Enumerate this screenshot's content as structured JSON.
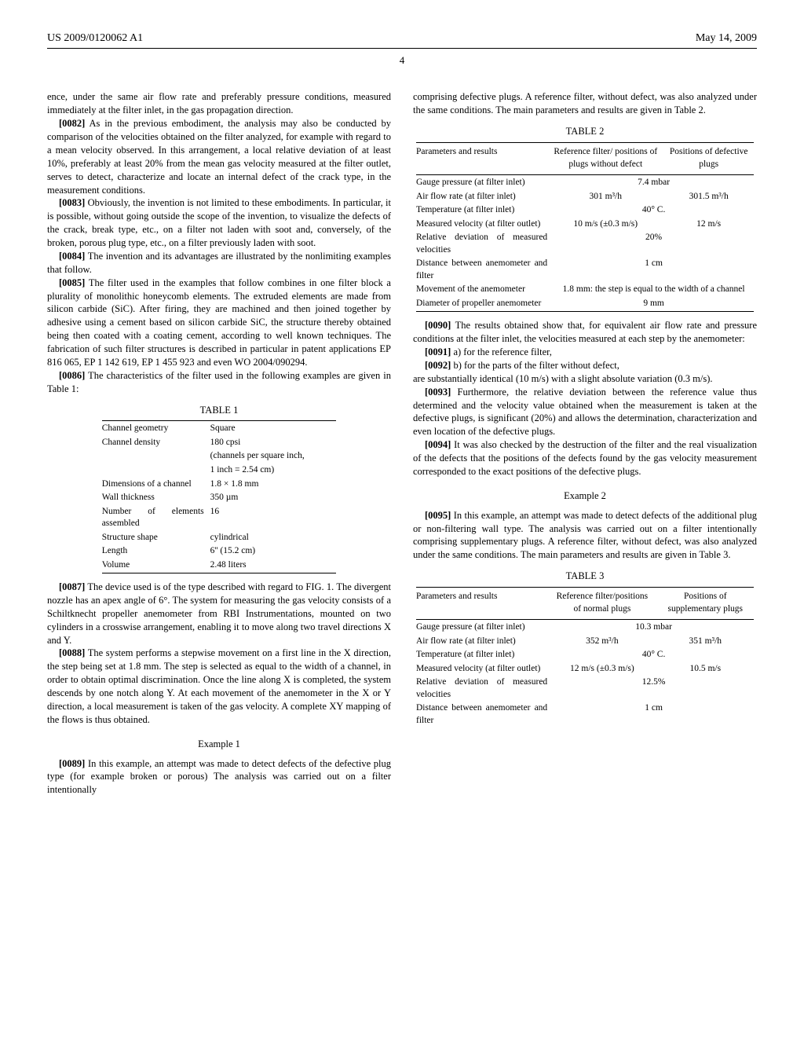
{
  "header": {
    "left": "US 2009/0120062 A1",
    "right": "May 14, 2009"
  },
  "pageNumber": "4",
  "leftCol": {
    "p_cont": "ence, under the same air flow rate and preferably pressure conditions, measured immediately at the filter inlet, in the gas propagation direction.",
    "p0082": "As in the previous embodiment, the analysis may also be conducted by comparison of the velocities obtained on the filter analyzed, for example with regard to a mean velocity observed. In this arrangement, a local relative deviation of at least 10%, preferably at least 20% from the mean gas velocity measured at the filter outlet, serves to detect, characterize and locate an internal defect of the crack type, in the measurement conditions.",
    "p0083": "Obviously, the invention is not limited to these embodiments. In particular, it is possible, without going outside the scope of the invention, to visualize the defects of the crack, break type, etc., on a filter not laden with soot and, conversely, of the broken, porous plug type, etc., on a filter previously laden with soot.",
    "p0084": "The invention and its advantages are illustrated by the nonlimiting examples that follow.",
    "p0085": "The filter used in the examples that follow combines in one filter block a plurality of monolithic honeycomb elements. The extruded elements are made from silicon carbide (SiC). After firing, they are machined and then joined together by adhesive using a cement based on silicon carbide SiC, the structure thereby obtained being then coated with a coating cement, according to well known techniques. The fabrication of such filter structures is described in particular in patent applications EP 816 065, EP 1 142 619, EP 1 455 923 and even WO 2004/090294.",
    "p0086": "The characteristics of the filter used in the following examples are given in Table 1:",
    "table1": {
      "title": "TABLE 1",
      "rows": [
        [
          "Channel geometry",
          "Square"
        ],
        [
          "Channel density",
          "180 cpsi"
        ],
        [
          "",
          "(channels per square inch,"
        ],
        [
          "",
          "1 inch = 2.54 cm)"
        ],
        [
          "Dimensions of a channel",
          "1.8 × 1.8 mm"
        ],
        [
          "Wall thickness",
          "350 µm"
        ],
        [
          "Number of elements assembled",
          "16"
        ],
        [
          "Structure shape",
          "cylindrical"
        ],
        [
          "Length",
          "6'' (15.2 cm)"
        ],
        [
          "Volume",
          "2.48 liters"
        ]
      ]
    },
    "p0087": "The device used is of the type described with regard to FIG. 1. The divergent nozzle has an apex angle of 6°. The system for measuring the gas velocity consists of a Schiltknecht propeller anemometer from RBI Instrumentations, mounted on two cylinders in a crosswise arrangement, enabling it to move along two travel directions X and Y.",
    "p0088": "The system performs a stepwise movement on a first line in the X direction, the step being set at 1.8 mm. The step is selected as equal to the width of a channel, in order to obtain optimal discrimination. Once the line along X is completed, the system descends by one notch along Y. At each movement of the anemometer in the X or Y direction, a local measurement is taken of the gas velocity. A complete XY mapping of the flows is thus obtained.",
    "ex1_title": "Example 1",
    "p0089": "In this example, an attempt was made to detect defects of the defective plug type (for example broken or porous) The analysis was carried out on a filter intentionally"
  },
  "rightCol": {
    "p_cont": "comprising defective plugs. A reference filter, without defect, was also analyzed under the same conditions. The main parameters and results are given in Table 2.",
    "table2": {
      "title": "TABLE 2",
      "head": [
        "Parameters and results",
        "Reference filter/ positions of plugs without defect",
        "Positions of defective plugs"
      ],
      "rows": [
        {
          "label": "Gauge pressure (at filter inlet)",
          "span": "7.4 mbar"
        },
        {
          "label": "Air flow rate (at filter inlet)",
          "c1": "301 m³/h",
          "c2": "301.5 m³/h"
        },
        {
          "label": "Temperature (at filter inlet)",
          "span": "40° C."
        },
        {
          "label": "Measured velocity (at filter outlet)",
          "c1": "10 m/s (±0.3 m/s)",
          "c2": "12 m/s"
        },
        {
          "label": "Relative deviation of measured velocities",
          "span": "20%"
        },
        {
          "label": "Distance between anemometer and filter",
          "span": "1 cm"
        },
        {
          "label": "Movement of the anemometer",
          "span": "1.8 mm: the step is equal to the width of a channel"
        },
        {
          "label": "Diameter of propeller anemometer",
          "span": "9 mm"
        }
      ]
    },
    "p0090": "The results obtained show that, for equivalent air flow rate and pressure conditions at the filter inlet, the velocities measured at each step by the anemometer:",
    "p0091": "a) for the reference filter,",
    "p0092": "b) for the parts of the filter without defect,",
    "p_extra1": "are substantially identical (10 m/s) with a slight absolute variation (0.3 m/s).",
    "p0093": "Furthermore, the relative deviation between the reference value thus determined and the velocity value obtained when the measurement is taken at the defective plugs, is significant (20%) and allows the determination, characterization and even location of the defective plugs.",
    "p0094": "It was also checked by the destruction of the filter and the real visualization of the defects that the positions of the defects found by the gas velocity measurement corresponded to the exact positions of the defective plugs.",
    "ex2_title": "Example 2",
    "p0095": "In this example, an attempt was made to detect defects of the additional plug or non-filtering wall type. The analysis was carried out on a filter intentionally comprising supplementary plugs. A reference filter, without defect, was also analyzed under the same conditions. The main parameters and results are given in Table 3.",
    "table3": {
      "title": "TABLE 3",
      "head": [
        "Parameters and results",
        "Reference filter/positions of normal plugs",
        "Positions of supplementary plugs"
      ],
      "rows": [
        {
          "label": "Gauge pressure (at filter inlet)",
          "span": "10.3 mbar"
        },
        {
          "label": "Air flow rate (at filter inlet)",
          "c1": "352 m³/h",
          "c2": "351 m³/h"
        },
        {
          "label": "Temperature (at filter inlet)",
          "span": "40° C."
        },
        {
          "label": "Measured velocity (at filter outlet)",
          "c1": "12 m/s (±0.3 m/s)",
          "c2": "10.5 m/s"
        },
        {
          "label": "Relative deviation of measured velocities",
          "span": "12.5%"
        },
        {
          "label": "Distance between anemometer and filter",
          "span": "1 cm"
        }
      ]
    }
  }
}
